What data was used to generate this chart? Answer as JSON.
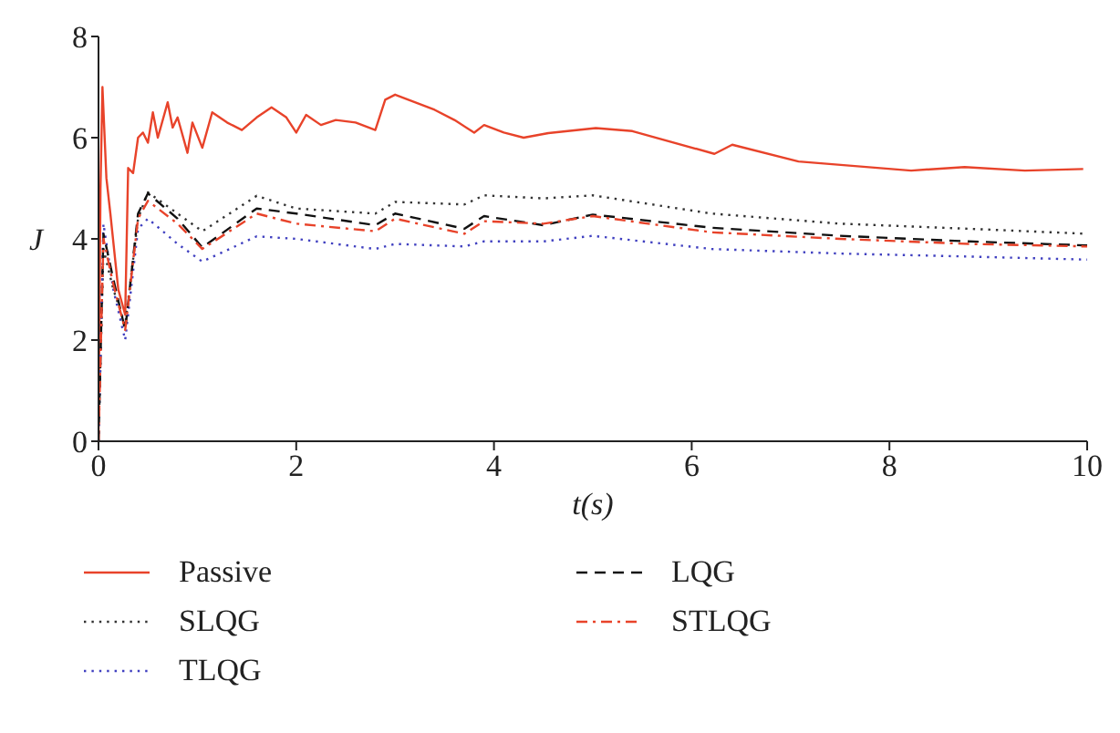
{
  "chart_data": {
    "type": "line",
    "xlabel": "t(s)",
    "ylabel": "J",
    "xlim": [
      0,
      10
    ],
    "xticks": [
      0,
      2,
      4,
      6,
      8,
      10
    ],
    "ylim": [
      0,
      8
    ],
    "yticks": [
      0,
      2,
      4,
      6,
      8
    ],
    "grid": false,
    "legend": "bottom",
    "marker": "none",
    "series": [
      {
        "name": "Passive",
        "color": "#e8432a",
        "line_style": "solid",
        "x": [
          0,
          0.02,
          0.04,
          0.08,
          0.12,
          0.2,
          0.27,
          0.3,
          0.35,
          0.4,
          0.45,
          0.5,
          0.55,
          0.6,
          0.7,
          0.75,
          0.8,
          0.9,
          0.95,
          1.05,
          1.15,
          1.3,
          1.45,
          1.6,
          1.75,
          1.9,
          2.0,
          2.1,
          2.25,
          2.4,
          2.6,
          2.8,
          2.9,
          3.0,
          3.2,
          3.4,
          3.6,
          3.8,
          3.9,
          4.1,
          4.3,
          4.55,
          5.03,
          5.4,
          6.23,
          6.41,
          7.08,
          8.22,
          8.76,
          9.37,
          9.96
        ],
        "values": [
          0,
          5,
          7.0,
          5.2,
          4.5,
          3.0,
          2.5,
          5.4,
          5.3,
          6.0,
          6.1,
          5.9,
          6.5,
          6.0,
          6.7,
          6.2,
          6.4,
          5.7,
          6.3,
          5.8,
          6.5,
          6.3,
          6.15,
          6.4,
          6.6,
          6.4,
          6.1,
          6.45,
          6.25,
          6.35,
          6.3,
          6.15,
          6.75,
          6.85,
          6.7,
          6.55,
          6.35,
          6.1,
          6.25,
          6.1,
          6.0,
          6.09,
          6.19,
          6.13,
          5.68,
          5.86,
          5.53,
          5.35,
          5.42,
          5.35,
          5.38
        ]
      },
      {
        "name": "SLQG",
        "color": "#333333",
        "line_style": "dotted",
        "x": [
          0,
          0.05,
          0.15,
          0.27,
          0.4,
          0.5,
          0.8,
          1.05,
          1.6,
          2.0,
          2.8,
          3.0,
          3.7,
          3.9,
          4.5,
          5.0,
          6.2,
          7.5,
          8.8,
          10
        ],
        "values": [
          0,
          3.8,
          3.0,
          2.3,
          4.4,
          4.92,
          4.5,
          4.15,
          4.85,
          4.6,
          4.5,
          4.73,
          4.68,
          4.86,
          4.8,
          4.86,
          4.5,
          4.3,
          4.2,
          4.1
        ]
      },
      {
        "name": "TLQG",
        "color": "#4040c0",
        "line_style": "dotted",
        "x": [
          0,
          0.05,
          0.15,
          0.27,
          0.4,
          0.5,
          0.8,
          1.05,
          1.6,
          2.0,
          2.8,
          3.0,
          3.7,
          3.9,
          4.5,
          5.0,
          6.2,
          7.5,
          8.8,
          10
        ],
        "values": [
          0,
          4.3,
          3.0,
          2.0,
          4.2,
          4.4,
          3.9,
          3.55,
          4.05,
          4.0,
          3.8,
          3.9,
          3.85,
          3.95,
          3.95,
          4.06,
          3.8,
          3.71,
          3.65,
          3.59
        ]
      },
      {
        "name": "LQG",
        "color": "#111111",
        "line_style": "dashed",
        "x": [
          0,
          0.05,
          0.15,
          0.27,
          0.4,
          0.5,
          0.8,
          1.05,
          1.6,
          2.0,
          2.8,
          3.0,
          3.7,
          3.9,
          4.5,
          5.0,
          6.2,
          7.5,
          8.8,
          10
        ],
        "values": [
          0,
          4.1,
          3.2,
          2.2,
          4.5,
          4.9,
          4.4,
          3.83,
          4.6,
          4.5,
          4.27,
          4.5,
          4.2,
          4.45,
          4.27,
          4.48,
          4.22,
          4.06,
          3.95,
          3.87
        ]
      },
      {
        "name": "STLQG",
        "color": "#e8432a",
        "line_style": "dashdot",
        "x": [
          0,
          0.05,
          0.15,
          0.27,
          0.4,
          0.5,
          0.8,
          1.05,
          1.6,
          2.0,
          2.8,
          3.0,
          3.7,
          3.9,
          4.5,
          5.0,
          6.2,
          7.5,
          8.8,
          10
        ],
        "values": [
          0,
          4.0,
          3.1,
          2.2,
          4.4,
          4.75,
          4.3,
          3.8,
          4.5,
          4.3,
          4.15,
          4.4,
          4.1,
          4.35,
          4.3,
          4.45,
          4.13,
          4.0,
          3.9,
          3.85
        ]
      }
    ]
  }
}
